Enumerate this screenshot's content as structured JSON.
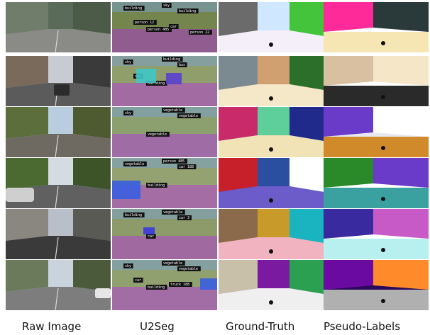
{
  "columns": [
    {
      "key": "raw",
      "label": "Raw Image"
    },
    {
      "key": "u2seg",
      "label": "U2Seg"
    },
    {
      "key": "gt",
      "label": "Ground-Truth"
    },
    {
      "key": "pseudo",
      "label": "Pseudo-Labels"
    }
  ],
  "u2seg_tags": [
    [
      "building",
      "sky",
      "building",
      "person 485",
      "person 12",
      "car",
      "person 22"
    ],
    [
      "sky",
      "building",
      "bus",
      "building",
      "car"
    ],
    [
      "sky",
      "vegetable",
      "vegetable",
      "vegetable"
    ],
    [
      "vegetable",
      "person 485",
      "car 188",
      "building"
    ],
    [
      "building",
      "vegetable",
      "car 3",
      "car"
    ],
    [
      "sky",
      "vegetable",
      "vegetable",
      "building",
      "car",
      "truck 188"
    ]
  ]
}
